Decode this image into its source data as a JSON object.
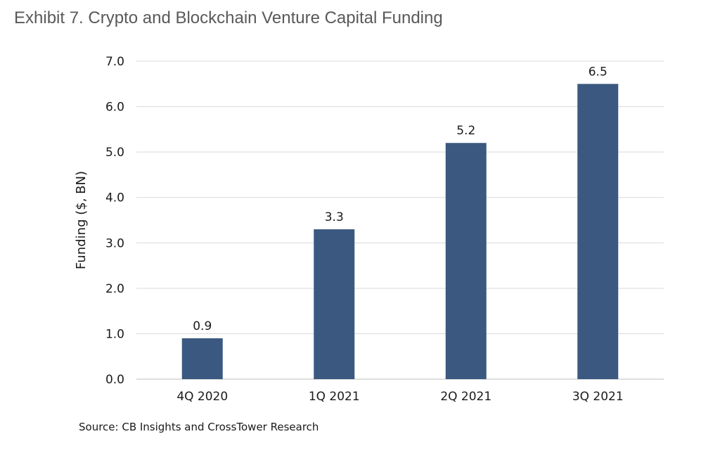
{
  "header": {
    "title": "Exhibit 7. Crypto and Blockchain Venture Capital Funding"
  },
  "footer": {
    "source": "Source: CB Insights and CrossTower Research"
  },
  "chart_data": {
    "type": "bar",
    "categories": [
      "4Q 2020",
      "1Q 2021",
      "2Q 2021",
      "3Q 2021"
    ],
    "values": [
      0.9,
      3.3,
      5.2,
      6.5
    ],
    "value_labels": [
      "0.9",
      "3.3",
      "5.2",
      "6.5"
    ],
    "title": "",
    "xlabel": "",
    "ylabel": "Funding ($, BN)",
    "ylim": [
      0,
      7
    ],
    "yticks": [
      "0.0",
      "1.0",
      "2.0",
      "3.0",
      "4.0",
      "5.0",
      "6.0",
      "7.0"
    ],
    "grid": true,
    "legend": "none",
    "bar_color": "#3b5980",
    "grid_color": "#d9d9d9"
  }
}
